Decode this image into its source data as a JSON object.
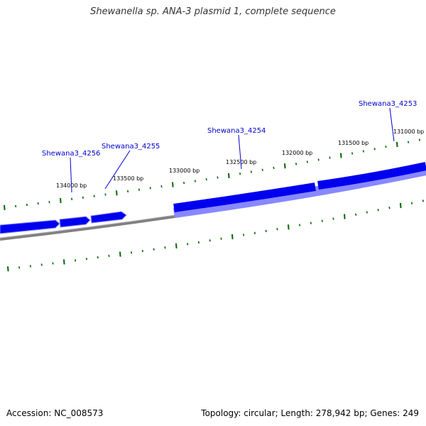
{
  "title": "Shewanella sp. ANA-3 plasmid 1, complete sequence",
  "footer": {
    "accession": "Accession: NC_008573",
    "summary": "Topology: circular; Length: 278,942 bp; Genes: 249"
  },
  "colors": {
    "gene": "#0000ee",
    "gene_shadow": "#8888ff",
    "backbone": "#808080",
    "tick": "#006600",
    "gene_label": "#0000cc"
  },
  "tick_labels": [
    "131000 bp",
    "131500 bp",
    "132000 bp",
    "132500 bp",
    "133000 bp",
    "133500 bp",
    "134000 bp"
  ],
  "gene_labels": [
    "Shewana3_4253",
    "Shewana3_4254",
    "Shewana3_4255",
    "Shewana3_4256"
  ]
}
